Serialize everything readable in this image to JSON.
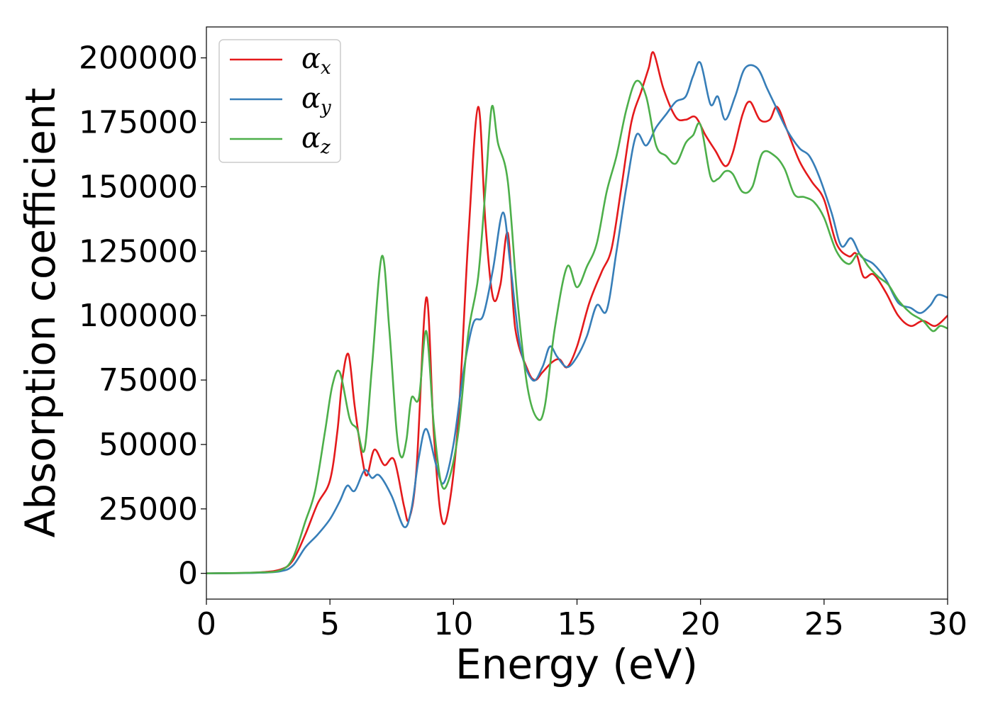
{
  "chart_data": {
    "type": "line",
    "xlabel": "Energy (eV)",
    "ylabel": "Absorption coefficient",
    "xlim": [
      0,
      30
    ],
    "ylim": [
      -10000,
      212000
    ],
    "x_ticks": [
      0,
      5,
      10,
      15,
      20,
      25,
      30
    ],
    "x_tick_labels": [
      "0",
      "5",
      "10",
      "15",
      "20",
      "25",
      "30"
    ],
    "y_ticks": [
      0,
      25000,
      50000,
      75000,
      100000,
      125000,
      150000,
      175000,
      200000
    ],
    "y_tick_labels": [
      "0",
      "25000",
      "50000",
      "75000",
      "100000",
      "125000",
      "150000",
      "175000",
      "200000"
    ],
    "grid": false,
    "legend_position": "top-left",
    "series": [
      {
        "name": "α",
        "subscript": "x",
        "color": "#e41a1c",
        "points": [
          [
            0,
            0
          ],
          [
            2,
            300
          ],
          [
            3,
            1500
          ],
          [
            3.5,
            5000
          ],
          [
            4,
            15000
          ],
          [
            4.5,
            27000
          ],
          [
            5,
            36000
          ],
          [
            5.3,
            55000
          ],
          [
            5.5,
            75000
          ],
          [
            5.75,
            85000
          ],
          [
            6,
            65000
          ],
          [
            6.3,
            45000
          ],
          [
            6.5,
            38000
          ],
          [
            6.8,
            48000
          ],
          [
            7.2,
            42000
          ],
          [
            7.6,
            44000
          ],
          [
            8,
            26000
          ],
          [
            8.2,
            21000
          ],
          [
            8.5,
            40000
          ],
          [
            8.9,
            107000
          ],
          [
            9.2,
            55000
          ],
          [
            9.5,
            22000
          ],
          [
            9.8,
            25000
          ],
          [
            10.2,
            60000
          ],
          [
            10.6,
            130000
          ],
          [
            11.0,
            181000
          ],
          [
            11.3,
            135000
          ],
          [
            11.6,
            107000
          ],
          [
            11.9,
            112000
          ],
          [
            12.2,
            132000
          ],
          [
            12.5,
            95000
          ],
          [
            13.0,
            79000
          ],
          [
            13.3,
            75000
          ],
          [
            13.6,
            78000
          ],
          [
            14.0,
            82000
          ],
          [
            14.3,
            83000
          ],
          [
            14.6,
            80000
          ],
          [
            15.0,
            88000
          ],
          [
            15.5,
            105000
          ],
          [
            16.0,
            117000
          ],
          [
            16.4,
            126000
          ],
          [
            16.8,
            150000
          ],
          [
            17.2,
            175000
          ],
          [
            17.6,
            187000
          ],
          [
            17.9,
            196000
          ],
          [
            18.1,
            202000
          ],
          [
            18.5,
            188000
          ],
          [
            19.0,
            177000
          ],
          [
            19.4,
            176000
          ],
          [
            19.8,
            177000
          ],
          [
            20.2,
            170000
          ],
          [
            20.6,
            164000
          ],
          [
            21.0,
            158000
          ],
          [
            21.3,
            163000
          ],
          [
            21.7,
            178000
          ],
          [
            22.0,
            183000
          ],
          [
            22.4,
            176000
          ],
          [
            22.8,
            176000
          ],
          [
            23.1,
            181000
          ],
          [
            23.5,
            172000
          ],
          [
            24.0,
            160000
          ],
          [
            24.5,
            152000
          ],
          [
            25.0,
            145000
          ],
          [
            25.5,
            128000
          ],
          [
            26.0,
            123000
          ],
          [
            26.3,
            124000
          ],
          [
            26.6,
            115000
          ],
          [
            27.0,
            116000
          ],
          [
            27.5,
            109000
          ],
          [
            28.0,
            100000
          ],
          [
            28.5,
            96000
          ],
          [
            29.0,
            98000
          ],
          [
            29.5,
            96000
          ],
          [
            30.0,
            100000
          ]
        ]
      },
      {
        "name": "α",
        "subscript": "y",
        "color": "#377eb8",
        "points": [
          [
            0,
            0
          ],
          [
            2,
            200
          ],
          [
            3,
            800
          ],
          [
            3.5,
            3000
          ],
          [
            4,
            10000
          ],
          [
            4.5,
            15000
          ],
          [
            5,
            21000
          ],
          [
            5.4,
            28000
          ],
          [
            5.7,
            34000
          ],
          [
            6,
            32000
          ],
          [
            6.4,
            40000
          ],
          [
            6.7,
            37000
          ],
          [
            7.0,
            38000
          ],
          [
            7.5,
            30000
          ],
          [
            8.0,
            18000
          ],
          [
            8.3,
            25000
          ],
          [
            8.6,
            45000
          ],
          [
            8.9,
            56000
          ],
          [
            9.3,
            42000
          ],
          [
            9.6,
            35000
          ],
          [
            10.0,
            50000
          ],
          [
            10.4,
            78000
          ],
          [
            10.8,
            97000
          ],
          [
            11.2,
            100000
          ],
          [
            11.6,
            118000
          ],
          [
            12.0,
            140000
          ],
          [
            12.3,
            120000
          ],
          [
            12.7,
            88000
          ],
          [
            13.2,
            75000
          ],
          [
            13.6,
            80000
          ],
          [
            13.9,
            88000
          ],
          [
            14.2,
            84000
          ],
          [
            14.6,
            80000
          ],
          [
            15.0,
            84000
          ],
          [
            15.4,
            92000
          ],
          [
            15.8,
            104000
          ],
          [
            16.2,
            102000
          ],
          [
            16.6,
            125000
          ],
          [
            17.0,
            150000
          ],
          [
            17.4,
            170000
          ],
          [
            17.8,
            166000
          ],
          [
            18.2,
            173000
          ],
          [
            18.6,
            178000
          ],
          [
            19.0,
            183000
          ],
          [
            19.4,
            185000
          ],
          [
            19.7,
            193000
          ],
          [
            20.0,
            198000
          ],
          [
            20.4,
            182000
          ],
          [
            20.7,
            185000
          ],
          [
            21.0,
            176000
          ],
          [
            21.4,
            185000
          ],
          [
            21.8,
            196000
          ],
          [
            22.3,
            196000
          ],
          [
            22.7,
            188000
          ],
          [
            23.0,
            182000
          ],
          [
            23.5,
            172000
          ],
          [
            24.0,
            165000
          ],
          [
            24.4,
            162000
          ],
          [
            24.8,
            154000
          ],
          [
            25.3,
            140000
          ],
          [
            25.7,
            127000
          ],
          [
            26.1,
            130000
          ],
          [
            26.5,
            123000
          ],
          [
            27.0,
            120000
          ],
          [
            27.5,
            114000
          ],
          [
            28.0,
            105000
          ],
          [
            28.5,
            103000
          ],
          [
            28.9,
            101000
          ],
          [
            29.3,
            104000
          ],
          [
            29.6,
            108000
          ],
          [
            30.0,
            107000
          ]
        ]
      },
      {
        "name": "α",
        "subscript": "z",
        "color": "#4daf4a",
        "points": [
          [
            0,
            0
          ],
          [
            2,
            300
          ],
          [
            3,
            1200
          ],
          [
            3.5,
            6000
          ],
          [
            4,
            20000
          ],
          [
            4.4,
            32000
          ],
          [
            4.8,
            55000
          ],
          [
            5.1,
            73000
          ],
          [
            5.4,
            78000
          ],
          [
            5.8,
            60000
          ],
          [
            6.1,
            56000
          ],
          [
            6.4,
            48000
          ],
          [
            6.7,
            80000
          ],
          [
            7.1,
            123000
          ],
          [
            7.4,
            95000
          ],
          [
            7.7,
            55000
          ],
          [
            7.9,
            45000
          ],
          [
            8.1,
            52000
          ],
          [
            8.3,
            68000
          ],
          [
            8.6,
            68000
          ],
          [
            8.9,
            94000
          ],
          [
            9.2,
            58000
          ],
          [
            9.5,
            35000
          ],
          [
            9.8,
            36000
          ],
          [
            10.2,
            55000
          ],
          [
            10.6,
            93000
          ],
          [
            11.0,
            115000
          ],
          [
            11.3,
            150000
          ],
          [
            11.55,
            181000
          ],
          [
            11.8,
            167000
          ],
          [
            12.2,
            152000
          ],
          [
            12.6,
            105000
          ],
          [
            13.0,
            72000
          ],
          [
            13.4,
            60000
          ],
          [
            13.7,
            65000
          ],
          [
            14.1,
            95000
          ],
          [
            14.6,
            119000
          ],
          [
            15.0,
            111000
          ],
          [
            15.4,
            119000
          ],
          [
            15.8,
            128000
          ],
          [
            16.2,
            148000
          ],
          [
            16.6,
            162000
          ],
          [
            17.0,
            180000
          ],
          [
            17.4,
            191000
          ],
          [
            17.8,
            185000
          ],
          [
            18.2,
            166000
          ],
          [
            18.6,
            162000
          ],
          [
            19.0,
            159000
          ],
          [
            19.4,
            167000
          ],
          [
            19.7,
            170000
          ],
          [
            20.0,
            174000
          ],
          [
            20.4,
            154000
          ],
          [
            20.7,
            153000
          ],
          [
            21.0,
            156000
          ],
          [
            21.3,
            155000
          ],
          [
            21.7,
            148000
          ],
          [
            22.1,
            150000
          ],
          [
            22.5,
            163000
          ],
          [
            23.0,
            162000
          ],
          [
            23.4,
            157000
          ],
          [
            23.8,
            147000
          ],
          [
            24.2,
            146000
          ],
          [
            24.6,
            144000
          ],
          [
            25.0,
            138000
          ],
          [
            25.5,
            125000
          ],
          [
            26.0,
            120000
          ],
          [
            26.4,
            124000
          ],
          [
            26.8,
            119000
          ],
          [
            27.2,
            115000
          ],
          [
            27.6,
            112000
          ],
          [
            28.0,
            106000
          ],
          [
            28.5,
            101000
          ],
          [
            29.0,
            98000
          ],
          [
            29.4,
            94000
          ],
          [
            29.7,
            96000
          ],
          [
            30.0,
            95000
          ]
        ]
      }
    ]
  }
}
